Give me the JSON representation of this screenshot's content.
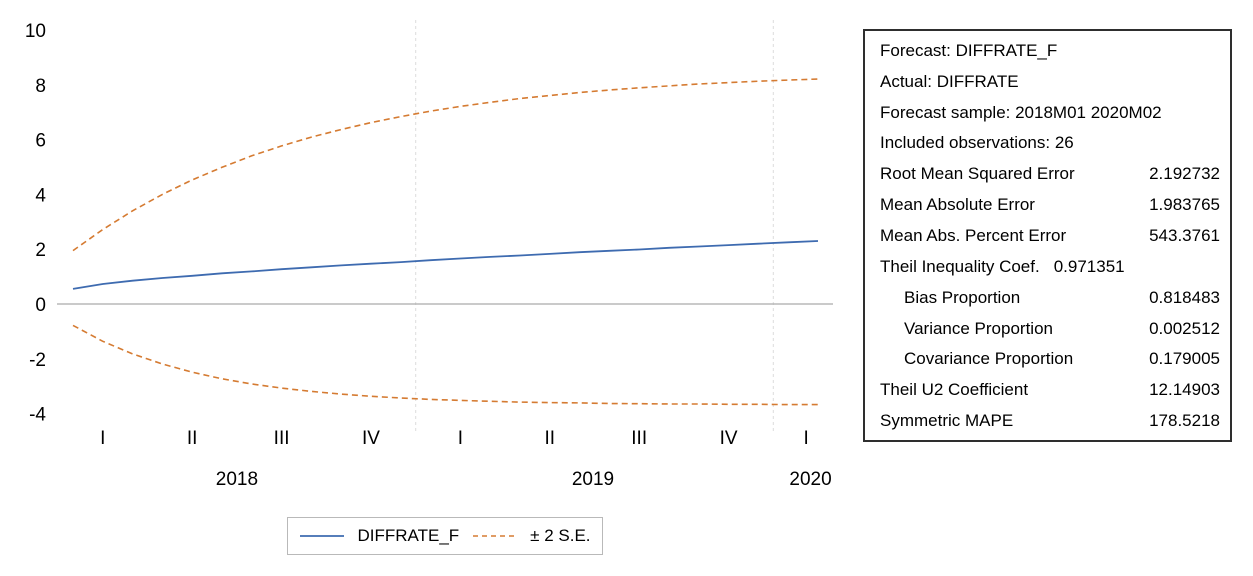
{
  "colors": {
    "forecast_line": "#3e6bb0",
    "se_band": "#d57b32",
    "zero_line": "#ababab",
    "gridline": "#dcdcdc",
    "text": "#000000"
  },
  "chart_data": {
    "type": "line",
    "title": "",
    "x_unit": "month",
    "x_range_label": "2018M01 - 2020M02",
    "n_points": 26,
    "ylim": [
      -4.7,
      10.4
    ],
    "grid": "vertical-year-boundaries",
    "y_ticks": [
      "10",
      "8",
      "6",
      "4",
      "2",
      "0",
      "-2",
      "-4"
    ],
    "y_tick_values": [
      10,
      8,
      6,
      4,
      2,
      0,
      -2,
      -4
    ],
    "quarter_ticks": [
      {
        "label": "I",
        "m": 1
      },
      {
        "label": "II",
        "m": 4
      },
      {
        "label": "III",
        "m": 7
      },
      {
        "label": "IV",
        "m": 10
      },
      {
        "label": "I",
        "m": 13
      },
      {
        "label": "II",
        "m": 16
      },
      {
        "label": "III",
        "m": 19
      },
      {
        "label": "IV",
        "m": 22
      },
      {
        "label": "I",
        "m": 24.6
      }
    ],
    "year_labels": [
      {
        "label": "2018",
        "m": 5.5
      },
      {
        "label": "2019",
        "m": 17.45
      },
      {
        "label": "2020",
        "m": 24.75
      }
    ],
    "year_boundaries_m": [
      11.5,
      23.5
    ],
    "series": [
      {
        "name": "DIFFRATE_F",
        "style": "solid",
        "color_key": "forecast_line",
        "values": [
          0.55,
          0.73,
          0.85,
          0.95,
          1.03,
          1.12,
          1.19,
          1.27,
          1.34,
          1.41,
          1.47,
          1.53,
          1.6,
          1.66,
          1.72,
          1.77,
          1.83,
          1.89,
          1.94,
          1.99,
          2.05,
          2.1,
          2.15,
          2.2,
          2.25,
          2.3
        ]
      },
      {
        "name": "+2 S.E.",
        "style": "dashed",
        "color_key": "se_band",
        "values": [
          1.95,
          2.72,
          3.4,
          4.0,
          4.53,
          4.99,
          5.41,
          5.77,
          6.09,
          6.37,
          6.62,
          6.84,
          7.04,
          7.21,
          7.36,
          7.5,
          7.61,
          7.72,
          7.81,
          7.89,
          7.96,
          8.03,
          8.08,
          8.13,
          8.17,
          8.21
        ]
      },
      {
        "name": "-2 S.E.",
        "style": "dashed",
        "color_key": "se_band",
        "values": [
          -0.78,
          -1.36,
          -1.82,
          -2.19,
          -2.49,
          -2.73,
          -2.92,
          -3.07,
          -3.19,
          -3.29,
          -3.37,
          -3.43,
          -3.48,
          -3.52,
          -3.55,
          -3.58,
          -3.6,
          -3.61,
          -3.63,
          -3.64,
          -3.65,
          -3.65,
          -3.66,
          -3.66,
          -3.67,
          -3.67
        ]
      }
    ]
  },
  "legend": {
    "items": [
      {
        "label": "DIFFRATE_F",
        "style": "solid",
        "color_key": "forecast_line"
      },
      {
        "label": "± 2 S.E.",
        "style": "dashed",
        "color_key": "se_band"
      }
    ]
  },
  "stats_panel": {
    "rows": [
      {
        "label": "Forecast: DIFFRATE_F",
        "value": "",
        "mode": "label-only"
      },
      {
        "label": "Actual: DIFFRATE",
        "value": "",
        "mode": "label-only"
      },
      {
        "label": "Forecast sample: 2018M01 2020M02",
        "value": "",
        "mode": "label-only"
      },
      {
        "label": "Included observations: 26",
        "value": "",
        "mode": "label-only"
      },
      {
        "label": "Root Mean Squared Error",
        "value": "2.192732",
        "mode": "right"
      },
      {
        "label": "Mean Absolute Error",
        "value": "1.983765",
        "mode": "right"
      },
      {
        "label": "Mean Abs. Percent Error",
        "value": "543.3761",
        "mode": "right"
      },
      {
        "label": "Theil Inequality Coef.",
        "value": "0.971351",
        "mode": "inline"
      },
      {
        "label": "Bias Proportion",
        "value": "0.818483",
        "mode": "right-indent"
      },
      {
        "label": "Variance Proportion",
        "value": "0.002512",
        "mode": "right-indent"
      },
      {
        "label": "Covariance Proportion",
        "value": "0.179005",
        "mode": "right-indent"
      },
      {
        "label": "Theil U2 Coefficient",
        "value": "12.14903",
        "mode": "right"
      },
      {
        "label": "Symmetric MAPE",
        "value": "178.5218",
        "mode": "right"
      }
    ]
  }
}
